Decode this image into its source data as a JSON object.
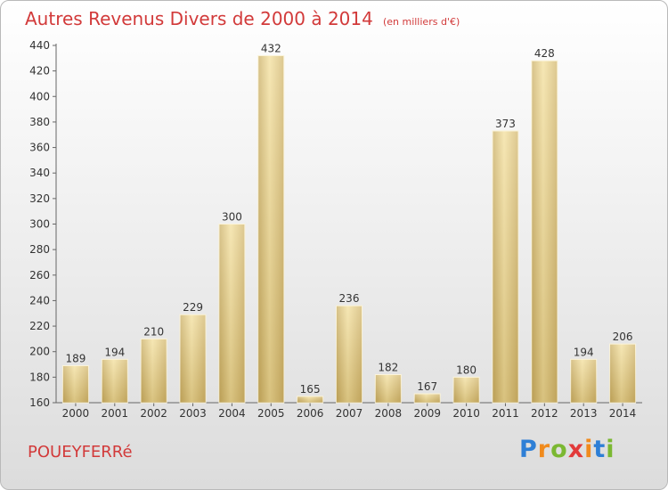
{
  "chart_data": {
    "type": "bar",
    "title": "Autres Revenus Divers de 2000 à 2014",
    "unit": "(en milliers d'€)",
    "categories": [
      "2000",
      "2001",
      "2002",
      "2003",
      "2004",
      "2005",
      "2006",
      "2007",
      "2008",
      "2009",
      "2010",
      "2011",
      "2012",
      "2013",
      "2014"
    ],
    "values": [
      189,
      194,
      210,
      229,
      300,
      432,
      165,
      236,
      182,
      167,
      180,
      373,
      428,
      194,
      206
    ],
    "ylim": [
      160,
      440
    ],
    "yticks": [
      160,
      180,
      200,
      220,
      240,
      260,
      280,
      300,
      320,
      340,
      360,
      380,
      400,
      420,
      440
    ],
    "grid": false,
    "bar_color": "#e6c979"
  },
  "commune": "POUEYFERRé",
  "logo": {
    "letters": [
      "P",
      "r",
      "o",
      "x",
      "i",
      "t",
      "i"
    ],
    "colors": [
      "#2e7fd6",
      "#f08a1c",
      "#7bb832",
      "#e23a3a",
      "#f08a1c",
      "#2e7fd6",
      "#7bb832"
    ]
  }
}
